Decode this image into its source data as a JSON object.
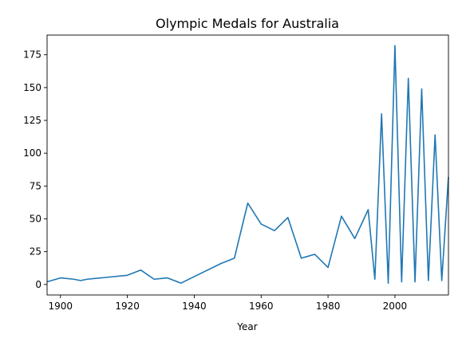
{
  "chart_data": {
    "type": "line",
    "title": "Olympic Medals for Australia",
    "xlabel": "Year",
    "ylabel": "",
    "xlim": [
      1896,
      2016
    ],
    "ylim": [
      -8,
      190
    ],
    "xticks": [
      1900,
      1920,
      1940,
      1960,
      1980,
      2000
    ],
    "yticks": [
      0,
      25,
      50,
      75,
      100,
      125,
      150,
      175
    ],
    "grid": false,
    "legend": "none",
    "series": [
      {
        "color": "#1f77b4",
        "x": [
          1896,
          1900,
          1904,
          1906,
          1908,
          1912,
          1920,
          1924,
          1928,
          1932,
          1936,
          1948,
          1952,
          1956,
          1960,
          1964,
          1968,
          1972,
          1976,
          1980,
          1984,
          1988,
          1992,
          1994,
          1996,
          1998,
          2000,
          2002,
          2004,
          2006,
          2008,
          2010,
          2012,
          2014,
          2016
        ],
        "y": [
          2,
          5,
          4,
          3,
          4,
          5,
          7,
          11,
          4,
          5,
          1,
          16,
          20,
          62,
          46,
          41,
          51,
          20,
          23,
          13,
          52,
          35,
          57,
          4,
          130,
          1,
          182,
          2,
          157,
          2,
          149,
          3,
          114,
          3,
          82
        ]
      }
    ]
  }
}
